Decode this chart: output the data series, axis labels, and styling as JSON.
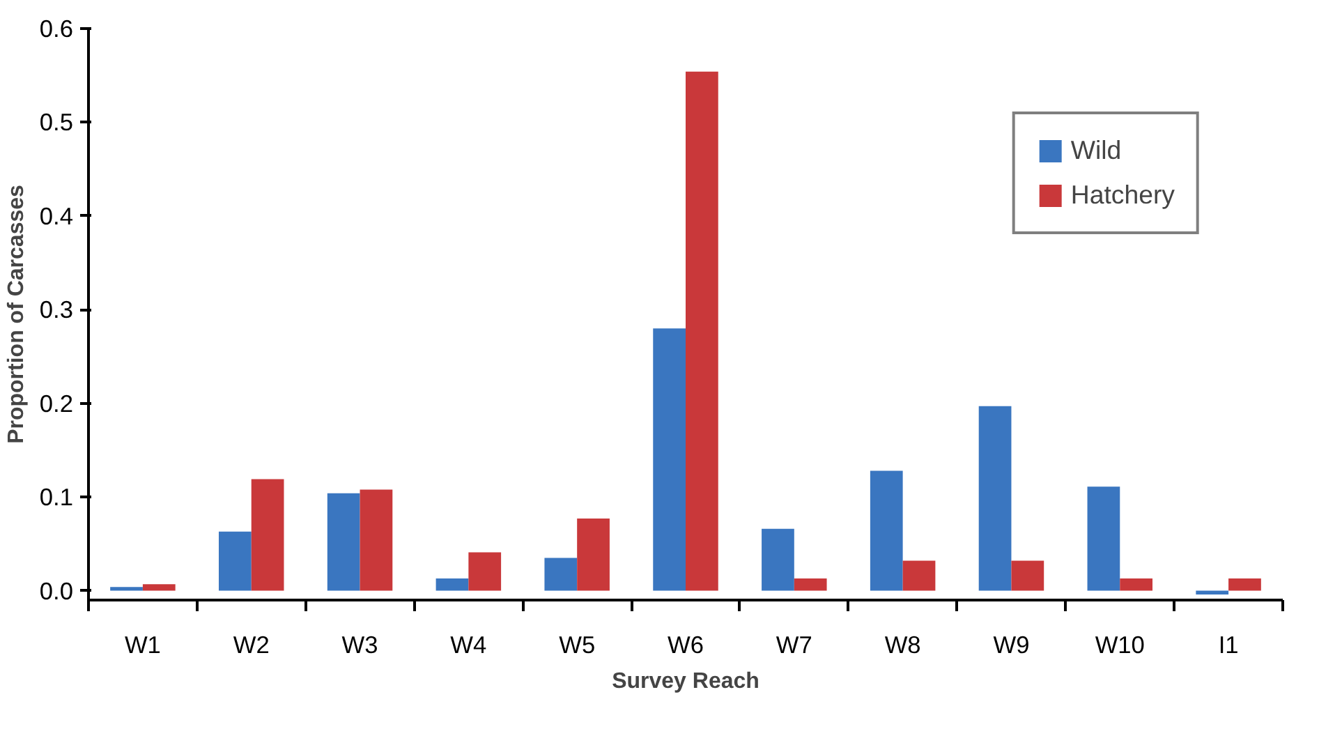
{
  "chart_data": {
    "type": "bar",
    "xlabel": "Survey Reach",
    "ylabel": "Proportion of Carcasses",
    "categories": [
      "W1",
      "W2",
      "W3",
      "W4",
      "W5",
      "W6",
      "W7",
      "W8",
      "W9",
      "W10",
      "I1"
    ],
    "series": [
      {
        "name": "Wild",
        "color": "#3a76c0",
        "values": [
          0.004,
          0.063,
          0.104,
          0.013,
          0.035,
          0.28,
          0.066,
          0.128,
          0.197,
          0.111,
          -0.004
        ]
      },
      {
        "name": "Hatchery",
        "color": "#c9383a",
        "values": [
          0.007,
          0.119,
          0.108,
          0.041,
          0.077,
          0.554,
          0.013,
          0.032,
          0.032,
          0.013,
          0.013
        ]
      }
    ],
    "ylim": [
      -0.01,
      0.6
    ],
    "yticks": [
      {
        "value": 0,
        "label": "0.0"
      },
      0.1,
      0.2,
      0.3,
      0.4,
      0.5,
      0.6
    ],
    "grid": false,
    "legend": "top right"
  }
}
